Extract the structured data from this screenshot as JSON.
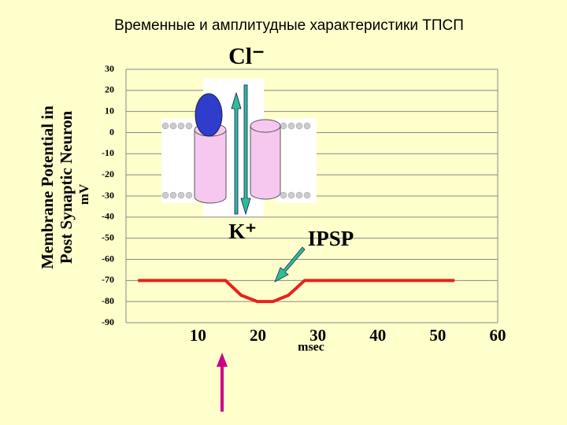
{
  "chart_data": {
    "type": "line",
    "title": "Временные и амплитудные характеристики ТПСП",
    "ylabel": [
      "Membrane Potential in",
      "Post Synaptic Neuron"
    ],
    "y_unit": "mV",
    "x_unit": "msec",
    "annotations": [
      "Cl⁻",
      "K⁺",
      "IPSP"
    ],
    "x": [
      0,
      14.6,
      17.2,
      19.9,
      22.5,
      25.1,
      27.8,
      52.8
    ],
    "values": [
      -70,
      -70,
      -77,
      -80,
      -80,
      -77,
      -70,
      -70
    ],
    "color": "#e8231c",
    "xlim": [
      -2,
      60
    ],
    "xticks": [
      10,
      20,
      30,
      40,
      50,
      60
    ],
    "ylim": [
      -90,
      30
    ],
    "yticks": [
      -90,
      -80,
      -70,
      -60,
      -50,
      -40,
      -30,
      -20,
      -10,
      0,
      10,
      20,
      30
    ],
    "grid": true
  }
}
